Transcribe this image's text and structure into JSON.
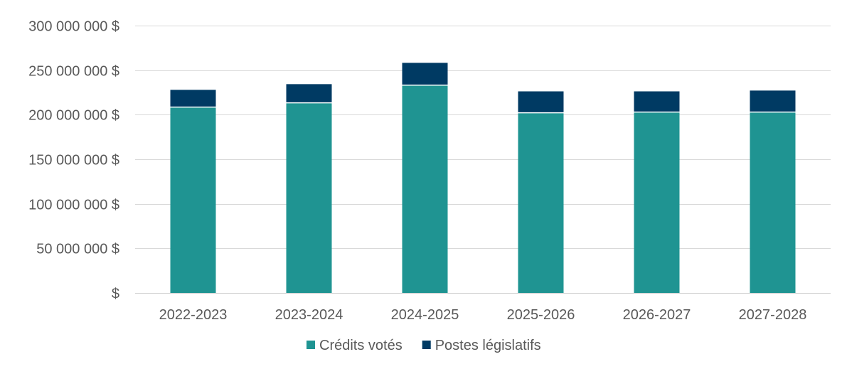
{
  "chart_data": {
    "type": "bar",
    "stacked": true,
    "categories": [
      "2022-2023",
      "2023-2024",
      "2024-2025",
      "2025-2026",
      "2026-2027",
      "2027-2028"
    ],
    "series": [
      {
        "name": "Crédits votés",
        "color": "#1f9492",
        "values": [
          208500000,
          213300000,
          233200000,
          202200000,
          203000000,
          203000000
        ]
      },
      {
        "name": "Postes législatifs",
        "color": "#003a63",
        "values": [
          19400000,
          21000000,
          25000000,
          24000000,
          23200000,
          24100000
        ]
      }
    ],
    "ylim": [
      0,
      300000000
    ],
    "yticks": [
      0,
      50000000,
      100000000,
      150000000,
      200000000,
      250000000,
      300000000
    ],
    "ytick_labels": [
      "$",
      "50 000 000 $",
      "100 000 000 $",
      "150 000 000 $",
      "200 000 000 $",
      "250 000 000 $",
      "300 000 000 $"
    ],
    "grid": true,
    "legend": "bottom",
    "title": "",
    "xlabel": "",
    "ylabel": ""
  }
}
